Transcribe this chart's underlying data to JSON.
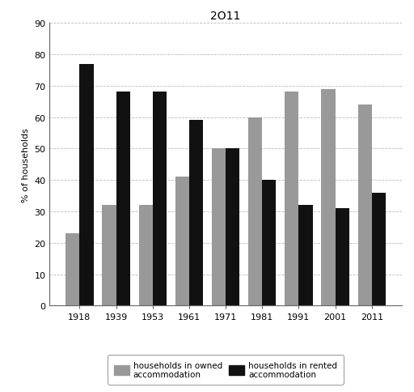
{
  "title": "2O11",
  "years": [
    "1918",
    "1939",
    "1953",
    "1961",
    "1971",
    "1981",
    "1991",
    "2001",
    "2011"
  ],
  "owned": [
    23,
    32,
    32,
    41,
    50,
    60,
    68,
    69,
    64
  ],
  "rented": [
    77,
    68,
    68,
    59,
    50,
    40,
    32,
    31,
    36
  ],
  "owned_color": "#999999",
  "rented_color": "#111111",
  "ylabel": "% of households",
  "ylim": [
    0,
    90
  ],
  "yticks": [
    0,
    10,
    20,
    30,
    40,
    50,
    60,
    70,
    80,
    90
  ],
  "legend_owned": "households in owned\naccommodation",
  "legend_rented": "households in rented\naccommodation",
  "bar_width": 0.38,
  "background_color": "#ffffff",
  "grid_color": "#bbbbbb",
  "title_fontsize": 10,
  "axis_fontsize": 8,
  "tick_fontsize": 8
}
